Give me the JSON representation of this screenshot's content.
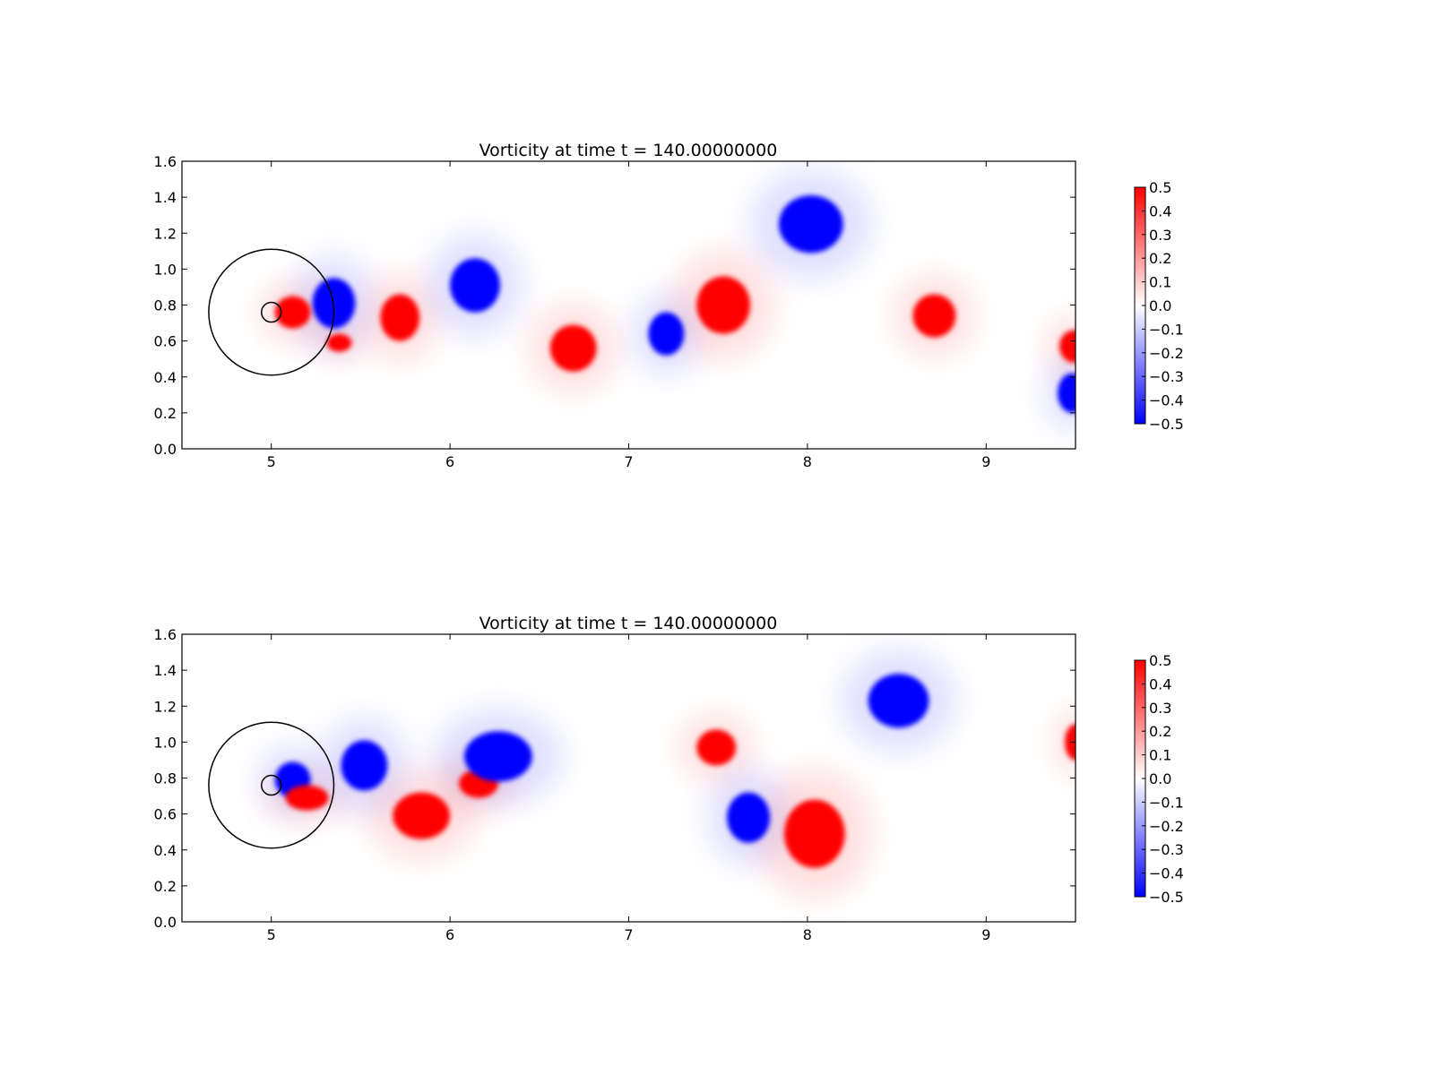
{
  "chart_data": [
    {
      "type": "heatmap",
      "title": "Vorticity at time t =   140.00000000",
      "xlim": [
        4.5,
        9.5
      ],
      "ylim": [
        0.0,
        1.6
      ],
      "xticks": [
        "5",
        "6",
        "7",
        "8",
        "9"
      ],
      "yticks": [
        "0.0",
        "0.2",
        "0.4",
        "0.6",
        "0.8",
        "1.0",
        "1.2",
        "1.4",
        "1.6"
      ],
      "colorbar": {
        "range": [
          -0.5,
          0.5
        ],
        "ticks": [
          "0.5",
          "0.4",
          "0.3",
          "0.2",
          "0.1",
          "0.0",
          "−0.1",
          "−0.2",
          "−0.3",
          "−0.4",
          "−0.5"
        ],
        "low_color": "#0000ff",
        "mid_color": "#ffffff",
        "high_color": "#ff0000"
      },
      "circles": [
        {
          "cx": 5.0,
          "cy": 0.76,
          "r": 0.35
        },
        {
          "cx": 5.0,
          "cy": 0.76,
          "r": 0.055
        }
      ],
      "vortices": [
        {
          "x": 5.35,
          "y": 0.81,
          "rx": 0.12,
          "ry": 0.14,
          "w": -0.5
        },
        {
          "x": 5.12,
          "y": 0.76,
          "rx": 0.1,
          "ry": 0.09,
          "w": 0.5
        },
        {
          "x": 5.38,
          "y": 0.59,
          "rx": 0.07,
          "ry": 0.05,
          "w": 0.5
        },
        {
          "x": 5.72,
          "y": 0.73,
          "rx": 0.11,
          "ry": 0.13,
          "w": 0.5
        },
        {
          "x": 6.14,
          "y": 0.91,
          "rx": 0.14,
          "ry": 0.15,
          "w": -0.5
        },
        {
          "x": 6.69,
          "y": 0.56,
          "rx": 0.13,
          "ry": 0.13,
          "w": 0.5
        },
        {
          "x": 7.21,
          "y": 0.64,
          "rx": 0.1,
          "ry": 0.12,
          "w": -0.5
        },
        {
          "x": 7.53,
          "y": 0.8,
          "rx": 0.15,
          "ry": 0.16,
          "w": 0.5
        },
        {
          "x": 8.02,
          "y": 1.25,
          "rx": 0.18,
          "ry": 0.16,
          "w": -0.5
        },
        {
          "x": 8.71,
          "y": 0.74,
          "rx": 0.12,
          "ry": 0.12,
          "w": 0.5
        },
        {
          "x": 9.49,
          "y": 0.57,
          "rx": 0.08,
          "ry": 0.09,
          "w": 0.5
        },
        {
          "x": 9.48,
          "y": 0.31,
          "rx": 0.08,
          "ry": 0.11,
          "w": -0.5
        }
      ]
    },
    {
      "type": "heatmap",
      "title": "Vorticity at time t =   140.00000000",
      "xlim": [
        4.5,
        9.5
      ],
      "ylim": [
        0.0,
        1.6
      ],
      "xticks": [
        "5",
        "6",
        "7",
        "8",
        "9"
      ],
      "yticks": [
        "0.0",
        "0.2",
        "0.4",
        "0.6",
        "0.8",
        "1.0",
        "1.2",
        "1.4",
        "1.6"
      ],
      "colorbar": {
        "range": [
          -0.5,
          0.5
        ],
        "ticks": [
          "0.5",
          "0.4",
          "0.3",
          "0.2",
          "0.1",
          "0.0",
          "−0.1",
          "−0.2",
          "−0.3",
          "−0.4",
          "−0.5"
        ],
        "low_color": "#0000ff",
        "mid_color": "#ffffff",
        "high_color": "#ff0000"
      },
      "circles": [
        {
          "cx": 5.0,
          "cy": 0.76,
          "r": 0.35
        },
        {
          "cx": 5.0,
          "cy": 0.76,
          "r": 0.055
        }
      ],
      "vortices": [
        {
          "x": 5.12,
          "y": 0.79,
          "rx": 0.1,
          "ry": 0.1,
          "w": -0.5
        },
        {
          "x": 5.2,
          "y": 0.69,
          "rx": 0.12,
          "ry": 0.07,
          "w": 0.5
        },
        {
          "x": 5.52,
          "y": 0.87,
          "rx": 0.13,
          "ry": 0.14,
          "w": -0.5
        },
        {
          "x": 5.84,
          "y": 0.59,
          "rx": 0.16,
          "ry": 0.13,
          "w": 0.5
        },
        {
          "x": 6.16,
          "y": 0.77,
          "rx": 0.11,
          "ry": 0.08,
          "w": 0.5
        },
        {
          "x": 6.27,
          "y": 0.92,
          "rx": 0.19,
          "ry": 0.14,
          "w": -0.5
        },
        {
          "x": 7.49,
          "y": 0.97,
          "rx": 0.11,
          "ry": 0.1,
          "w": 0.5
        },
        {
          "x": 7.67,
          "y": 0.58,
          "rx": 0.12,
          "ry": 0.14,
          "w": -0.5
        },
        {
          "x": 8.04,
          "y": 0.49,
          "rx": 0.17,
          "ry": 0.19,
          "w": 0.5
        },
        {
          "x": 8.51,
          "y": 1.23,
          "rx": 0.17,
          "ry": 0.15,
          "w": -0.5
        },
        {
          "x": 9.5,
          "y": 1.0,
          "rx": 0.06,
          "ry": 0.1,
          "w": 0.5
        }
      ]
    }
  ]
}
